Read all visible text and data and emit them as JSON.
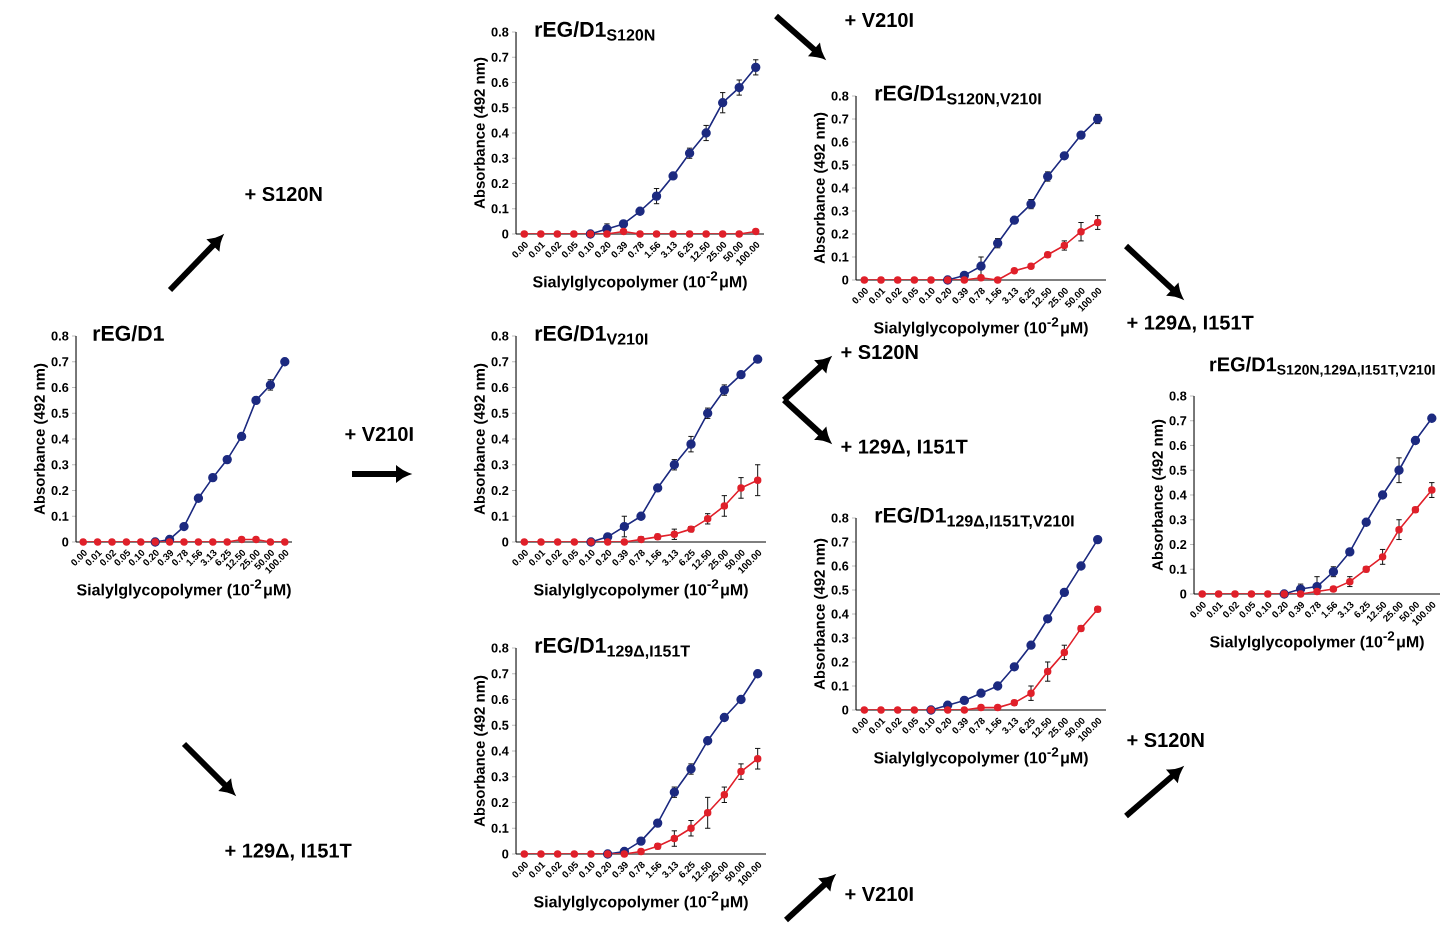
{
  "chart_data": [
    {
      "type": "line",
      "title": "\\textbf{rEG/D1}",
      "xlabel": "Sialylglycopolymer (10$^{-2}$μM)",
      "ylabel": "Absorbance (492 nm)",
      "categories": [
        "0.00",
        "0.01",
        "0.02",
        "0.05",
        "0.10",
        "0.20",
        "0.39",
        "0.78",
        "1.56",
        "3.13",
        "6.25",
        "12.50",
        "25.00",
        "50.00",
        "100.00"
      ],
      "ylim": [
        0,
        0.8
      ],
      "yticks": [
        0,
        0.1,
        0.2,
        0.3,
        0.4,
        0.5,
        0.6,
        0.7,
        0.8
      ],
      "marker": "circle",
      "annotations": [
        "+ S120N",
        "+ V210I",
        "+ 129Δ, I151T"
      ],
      "series": [
        {
          "color": "#1c2a80",
          "values": [
            null,
            null,
            null,
            null,
            null,
            0,
            0.01,
            0.06,
            0.17,
            0.25,
            0.32,
            0.41,
            0.55,
            0.61,
            0.7
          ],
          "errors": [
            null,
            null,
            null,
            null,
            null,
            0,
            0,
            0.01,
            0.01,
            0.01,
            0.01,
            0.01,
            0.01,
            0.02,
            0.01
          ]
        },
        {
          "color": "#e0202a",
          "values": [
            0,
            0,
            0,
            0,
            0,
            0,
            0,
            0,
            0,
            0,
            0,
            0.01,
            0.01,
            0,
            0
          ]
        }
      ]
    },
    {
      "type": "line",
      "title": "\\textbf{rEG/D1}_{\\textbf{S120N}}",
      "xlabel": "Sialylglycopolymer (10$^{-2}$μM)",
      "ylabel": "Absorbance (492 nm)",
      "categories": [
        "0.00",
        "0.01",
        "0.02",
        "0.05",
        "0.10",
        "0.20",
        "0.39",
        "0.78",
        "1.56",
        "3.13",
        "6.25",
        "12.50",
        "25.00",
        "50.00",
        "100.00"
      ],
      "ylim": [
        0,
        0.8
      ],
      "yticks": [
        0,
        0.1,
        0.2,
        0.3,
        0.4,
        0.5,
        0.6,
        0.7,
        0.8
      ],
      "marker": "circle",
      "annotations": [
        "+ V210I"
      ],
      "series": [
        {
          "color": "#1c2a80",
          "values": [
            null,
            null,
            null,
            null,
            0,
            0.02,
            0.04,
            0.09,
            0.15,
            0.23,
            0.32,
            0.4,
            0.52,
            0.58,
            0.66
          ],
          "errors": [
            null,
            null,
            null,
            null,
            0,
            0.02,
            0.01,
            0.01,
            0.03,
            0.01,
            0.02,
            0.03,
            0.04,
            0.03,
            0.03
          ]
        },
        {
          "color": "#e0202a",
          "values": [
            0,
            0,
            0,
            0,
            0,
            0,
            0.01,
            0,
            0,
            0,
            0,
            0,
            0,
            0,
            0.01
          ]
        }
      ]
    },
    {
      "type": "line",
      "title": "\\textbf{rEG/D1}_{\\textbf{V210I}}",
      "xlabel": "Sialylglycopolymer (10$^{-2}$μM)",
      "ylabel": "Absorbance (492 nm)",
      "categories": [
        "0.00",
        "0.01",
        "0.02",
        "0.05",
        "0.10",
        "0.20",
        "0.39",
        "0.78",
        "1.56",
        "3.13",
        "6.25",
        "12.50",
        "25.00",
        "50.00",
        "100.00"
      ],
      "ylim": [
        0,
        0.8
      ],
      "yticks": [
        0,
        0.1,
        0.2,
        0.3,
        0.4,
        0.5,
        0.6,
        0.7,
        0.8
      ],
      "marker": "circle",
      "annotations": [
        "+ S120N",
        "+ 129Δ, I151T"
      ],
      "series": [
        {
          "color": "#1c2a80",
          "values": [
            null,
            null,
            null,
            null,
            0,
            0.02,
            0.06,
            0.1,
            0.21,
            0.3,
            0.38,
            0.5,
            0.59,
            0.65,
            0.71
          ],
          "errors": [
            null,
            null,
            null,
            null,
            0,
            0.01,
            0.04,
            0.01,
            0.01,
            0.02,
            0.03,
            0.02,
            0.02,
            0.01,
            0.01
          ]
        },
        {
          "color": "#e0202a",
          "values": [
            0,
            0,
            0,
            0,
            0,
            0,
            0,
            0.01,
            0.02,
            0.03,
            0.05,
            0.09,
            0.14,
            0.21,
            0.24
          ],
          "errors": [
            0,
            0,
            0,
            0,
            0,
            0,
            0,
            0.01,
            0.01,
            0.02,
            0.01,
            0.02,
            0.04,
            0.04,
            0.06
          ]
        }
      ]
    },
    {
      "type": "line",
      "title": "\\textbf{rEG/D1}_{\\textbf{129Δ,I151T}}",
      "xlabel": "Sialylglycopolymer (10$^{-2}$μM)",
      "ylabel": "Absorbance (492 nm)",
      "categories": [
        "0.00",
        "0.01",
        "0.02",
        "0.05",
        "0.10",
        "0.20",
        "0.39",
        "0.78",
        "1.56",
        "3.13",
        "6.25",
        "12.50",
        "25.00",
        "50.00",
        "100.00"
      ],
      "ylim": [
        0,
        0.8
      ],
      "yticks": [
        0,
        0.1,
        0.2,
        0.3,
        0.4,
        0.5,
        0.6,
        0.7,
        0.8
      ],
      "marker": "circle",
      "annotations": [
        "+ V210I"
      ],
      "series": [
        {
          "color": "#1c2a80",
          "values": [
            null,
            null,
            null,
            null,
            null,
            0,
            0.01,
            0.05,
            0.12,
            0.24,
            0.33,
            0.44,
            0.53,
            0.6,
            0.7
          ],
          "errors": [
            null,
            null,
            null,
            null,
            null,
            0,
            0.01,
            0.01,
            0.01,
            0.02,
            0.02,
            0.01,
            0.01,
            0.01,
            0.01
          ]
        },
        {
          "color": "#e0202a",
          "values": [
            0,
            0,
            0,
            0,
            0,
            0,
            0,
            0.01,
            0.03,
            0.06,
            0.1,
            0.16,
            0.23,
            0.32,
            0.37
          ],
          "errors": [
            0,
            0,
            0,
            0,
            0,
            0,
            0,
            0,
            0.01,
            0.03,
            0.03,
            0.06,
            0.03,
            0.03,
            0.04
          ]
        }
      ]
    },
    {
      "type": "line",
      "title": "\\textbf{rEG/D1}_{\\textbf{S120N,V210I}}",
      "xlabel": "Sialylglycopolymer (10$^{-2}$μM)",
      "ylabel": "Absorbance (492 nm)",
      "categories": [
        "0.00",
        "0.01",
        "0.02",
        "0.05",
        "0.10",
        "0.20",
        "0.39",
        "0.78",
        "1.56",
        "3.13",
        "6.25",
        "12.50",
        "25.00",
        "50.00",
        "100.00"
      ],
      "ylim": [
        0,
        0.8
      ],
      "yticks": [
        0,
        0.1,
        0.2,
        0.3,
        0.4,
        0.5,
        0.6,
        0.7,
        0.8
      ],
      "marker": "circle",
      "annotations": [
        "+ 129Δ, I151T"
      ],
      "series": [
        {
          "color": "#1c2a80",
          "values": [
            null,
            null,
            null,
            null,
            null,
            0,
            0.02,
            0.06,
            0.16,
            0.26,
            0.33,
            0.45,
            0.54,
            0.63,
            0.7
          ],
          "errors": [
            null,
            null,
            null,
            null,
            null,
            0,
            0.01,
            0.04,
            0.02,
            0.01,
            0.02,
            0.02,
            0.01,
            0.01,
            0.02
          ]
        },
        {
          "color": "#e0202a",
          "values": [
            0,
            0,
            0,
            0,
            0,
            0,
            0,
            0.01,
            0,
            0.04,
            0.06,
            0.11,
            0.15,
            0.21,
            0.25
          ],
          "errors": [
            0,
            0,
            0,
            0,
            0,
            0,
            0,
            0,
            0,
            0,
            0,
            0.01,
            0.02,
            0.04,
            0.03
          ]
        }
      ]
    },
    {
      "type": "line",
      "title": "\\textbf{rEG/D1}_{\\textbf{129Δ,I151T,V210I}}",
      "xlabel": "Sialylglycopolymer (10$^{-2}$μM)",
      "ylabel": "Absorbance (492 nm)",
      "categories": [
        "0.00",
        "0.01",
        "0.02",
        "0.05",
        "0.10",
        "0.20",
        "0.39",
        "0.78",
        "1.56",
        "3.13",
        "6.25",
        "12.50",
        "25.00",
        "50.00",
        "100.00"
      ],
      "ylim": [
        0,
        0.8
      ],
      "yticks": [
        0,
        0.1,
        0.2,
        0.3,
        0.4,
        0.5,
        0.6,
        0.7,
        0.8
      ],
      "marker": "circle",
      "annotations": [
        "+ S120N"
      ],
      "series": [
        {
          "color": "#1c2a80",
          "values": [
            null,
            null,
            null,
            null,
            0,
            0.02,
            0.04,
            0.07,
            0.1,
            0.18,
            0.27,
            0.38,
            0.49,
            0.6,
            0.71
          ],
          "errors": [
            null,
            null,
            null,
            null,
            0,
            0.01,
            0.01,
            0.01,
            0.01,
            0.01,
            0.01,
            0.01,
            0.01,
            0.01,
            0.01
          ]
        },
        {
          "color": "#e0202a",
          "values": [
            0,
            0,
            0,
            0,
            0,
            0,
            0,
            0.01,
            0.01,
            0.03,
            0.07,
            0.16,
            0.24,
            0.34,
            0.42
          ],
          "errors": [
            0,
            0,
            0,
            0,
            0,
            0,
            0,
            0,
            0,
            0.01,
            0.03,
            0.04,
            0.03,
            0.01,
            0.01
          ]
        }
      ]
    },
    {
      "type": "line",
      "title": "\\textbf{rEG/D1}_{\\textbf{S120N,129Δ,I151T,V210I}}",
      "xlabel": "Sialylglycopolymer (10$^{-2}$μM)",
      "ylabel": "Absorbance (492 nm)",
      "categories": [
        "0.00",
        "0.01",
        "0.02",
        "0.05",
        "0.10",
        "0.20",
        "0.39",
        "0.78",
        "1.56",
        "3.13",
        "6.25",
        "12.50",
        "25.00",
        "50.00",
        "100.00"
      ],
      "ylim": [
        0,
        0.8
      ],
      "yticks": [
        0,
        0.1,
        0.2,
        0.3,
        0.4,
        0.5,
        0.6,
        0.7,
        0.8
      ],
      "marker": "circle",
      "series": [
        {
          "color": "#1c2a80",
          "values": [
            null,
            null,
            null,
            null,
            null,
            0,
            0.02,
            0.03,
            0.09,
            0.17,
            0.29,
            0.4,
            0.5,
            0.62,
            0.71
          ],
          "errors": [
            null,
            null,
            null,
            null,
            null,
            0,
            0.02,
            0.04,
            0.02,
            0.01,
            0.01,
            0.01,
            0.05,
            0.01,
            0.01
          ]
        },
        {
          "color": "#e0202a",
          "values": [
            0,
            0,
            0,
            0,
            0,
            0,
            0,
            0.01,
            0.02,
            0.05,
            0.1,
            0.15,
            0.26,
            0.34,
            0.42
          ],
          "errors": [
            0,
            0,
            0,
            0,
            0,
            0,
            0,
            0,
            0.01,
            0.02,
            0.01,
            0.03,
            0.04,
            0.01,
            0.03
          ]
        }
      ]
    }
  ]
}
